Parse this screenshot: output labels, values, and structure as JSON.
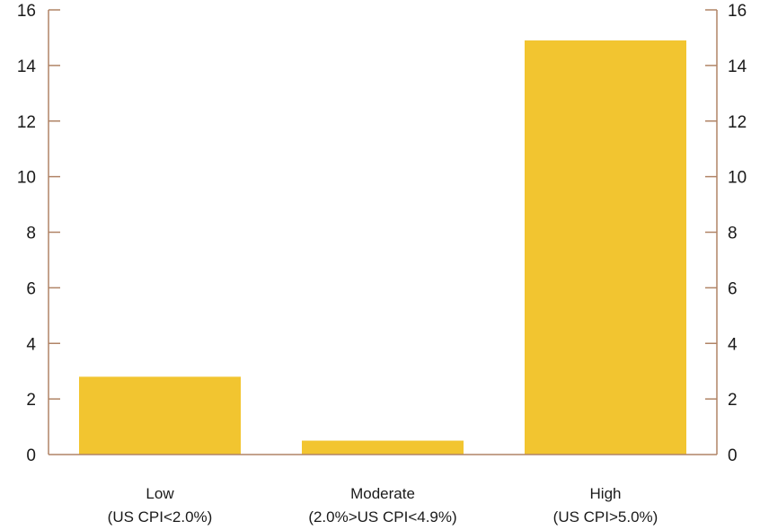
{
  "chart_data": {
    "type": "bar",
    "categories": [
      [
        "Low",
        "(US CPI<2.0%)"
      ],
      [
        "Moderate",
        "(2.0%>US CPI<4.9%)"
      ],
      [
        "High",
        "(US CPI>5.0%)"
      ]
    ],
    "values": [
      2.8,
      0.5,
      14.9
    ],
    "title": "",
    "xlabel": "",
    "ylabel": "",
    "ylim": [
      0,
      16
    ],
    "yticks": [
      0,
      2,
      4,
      6,
      8,
      10,
      12,
      14,
      16
    ],
    "grid": false,
    "legend": "none",
    "colors": {
      "bar": "#F2C530",
      "axis": "#B08466",
      "text": "#1a1a1a"
    }
  }
}
